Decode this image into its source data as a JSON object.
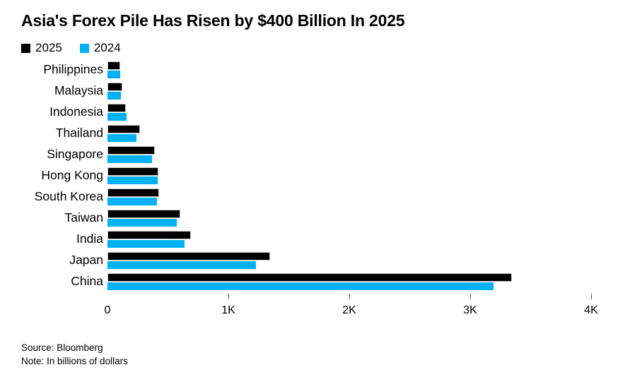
{
  "chart_data": {
    "type": "bar",
    "orientation": "horizontal",
    "title": "Asia's Forex Pile Has Risen by $400 Billion In 2025",
    "categories": [
      "Philippines",
      "Malaysia",
      "Indonesia",
      "Thailand",
      "Singapore",
      "Hong Kong",
      "South Korea",
      "Taiwan",
      "India",
      "Japan",
      "China"
    ],
    "series": [
      {
        "name": "2025",
        "color": "#000000",
        "values": [
          108,
          125,
          150,
          270,
          390,
          422,
          426,
          600,
          688,
          1345,
          3343
        ]
      },
      {
        "name": "2024",
        "color": "#00b2f5",
        "values": [
          106,
          113,
          160,
          237,
          370,
          418,
          412,
          576,
          640,
          1230,
          3195
        ]
      }
    ],
    "xlim": [
      0,
      4000
    ],
    "x_ticks": [
      {
        "label": "0",
        "value": 0,
        "tick_mark": false
      },
      {
        "label": "1K",
        "value": 1000,
        "tick_mark": true
      },
      {
        "label": "2K",
        "value": 2000,
        "tick_mark": true
      },
      {
        "label": "3K",
        "value": 3000,
        "tick_mark": true
      },
      {
        "label": "4K",
        "value": 4000,
        "tick_mark": true
      }
    ],
    "legend_position": "top-left",
    "grid": false
  },
  "colors": {
    "bar_2025_outline": "#c4c4c4",
    "tick": "#58595b",
    "text": "#000000",
    "background": "#ffffff"
  },
  "footer": {
    "source": "Source: Bloomberg",
    "note": "Note: In billions of dollars"
  }
}
